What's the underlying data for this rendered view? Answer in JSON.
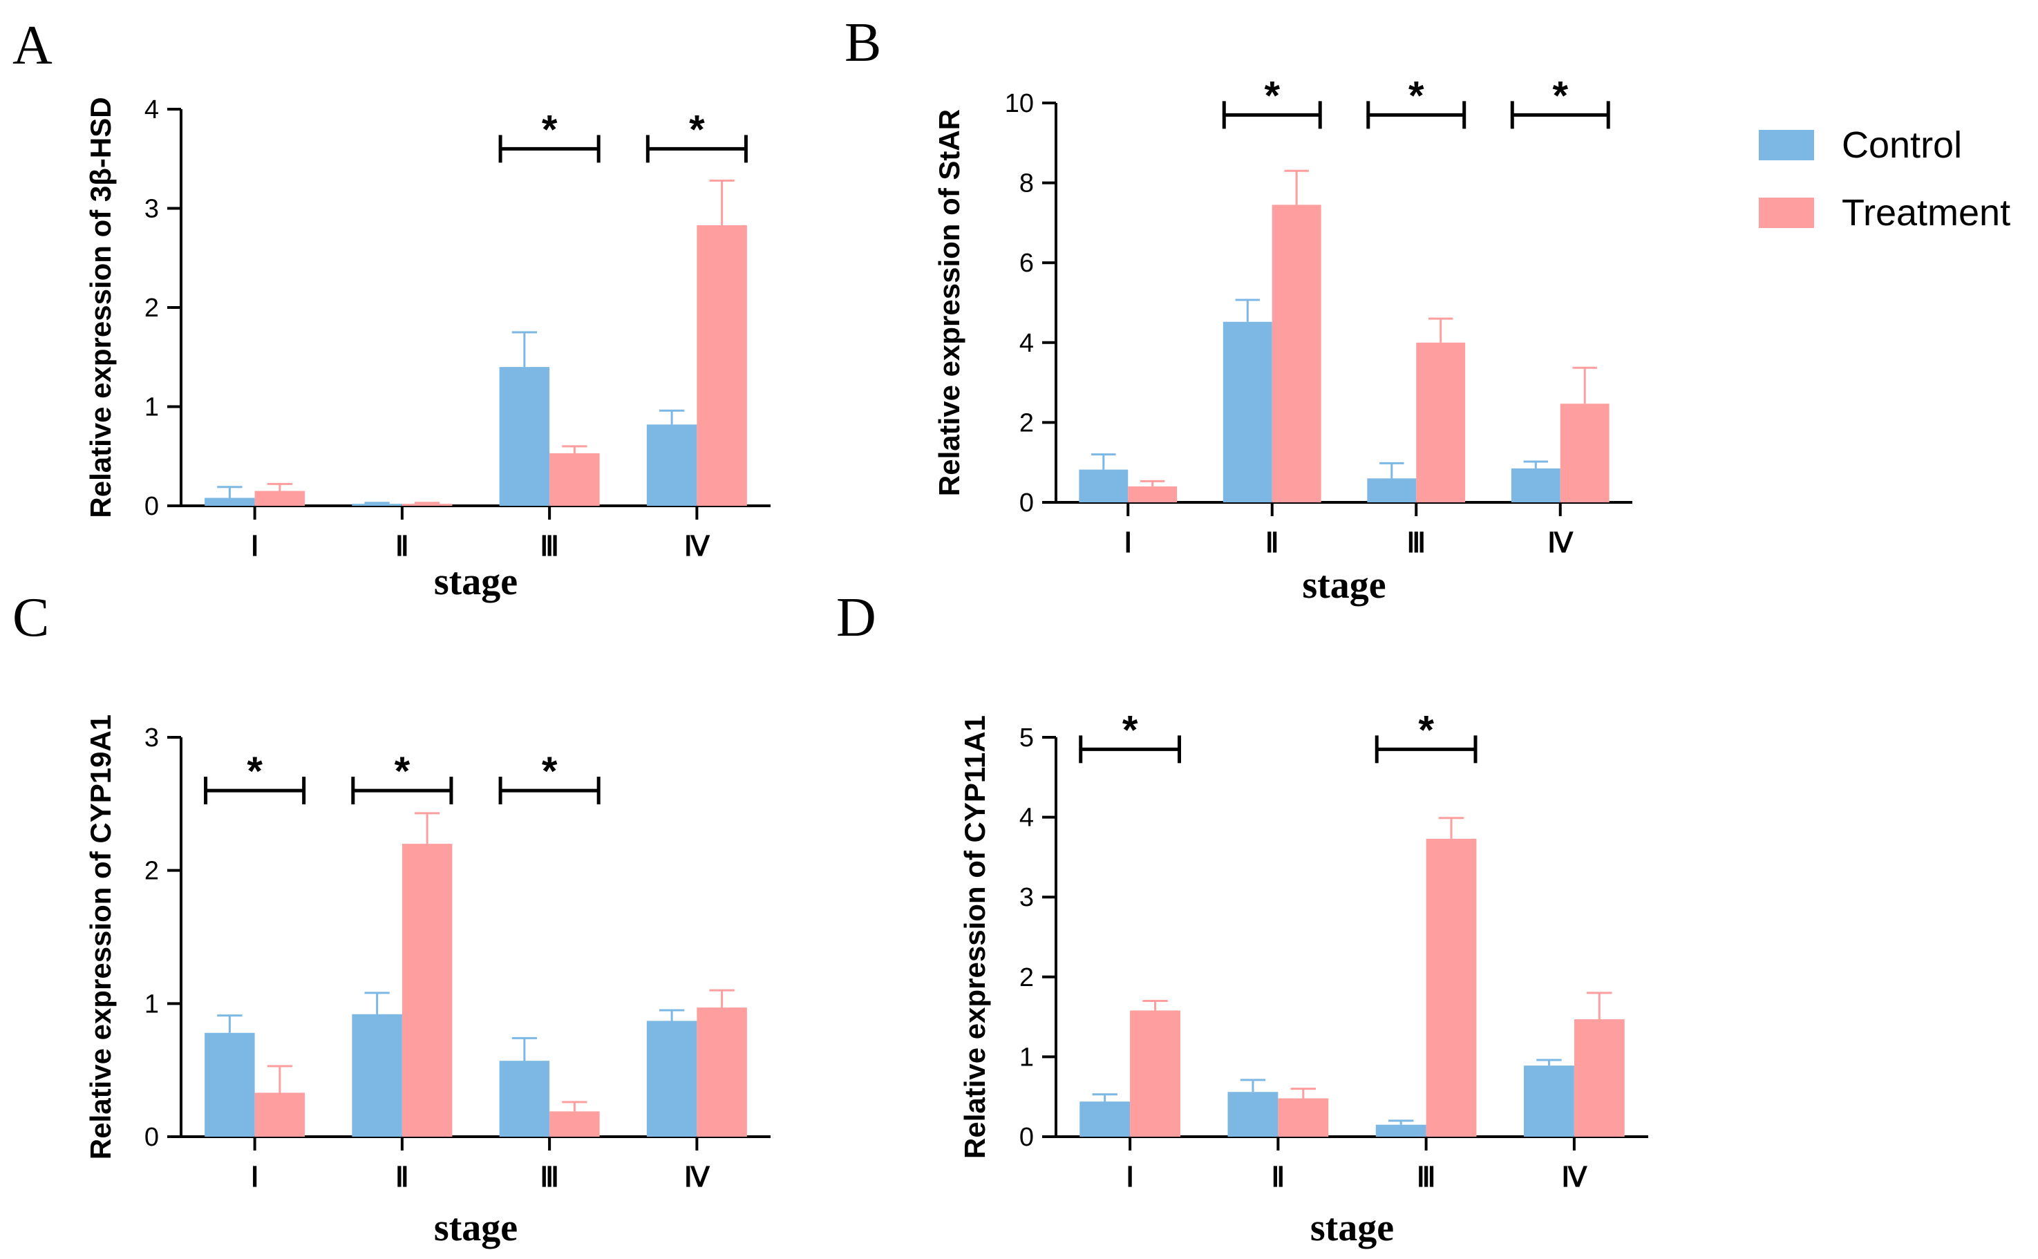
{
  "legend": {
    "items": [
      {
        "label": "Control",
        "color": "#7cb8e3"
      },
      {
        "label": "Treatment",
        "color": "#ff9e9e"
      }
    ]
  },
  "chart_data": [
    {
      "panel": "A",
      "type": "bar",
      "ylabel": "Relative expression of 3β-HSD",
      "xlabel": "stage",
      "categories": [
        "Ⅰ",
        "Ⅱ",
        "Ⅲ",
        "Ⅳ"
      ],
      "ylim": [
        0,
        4
      ],
      "yticks": [
        0,
        1,
        2,
        3,
        4
      ],
      "series": [
        {
          "name": "Control",
          "values": [
            0.08,
            0.02,
            1.4,
            0.82
          ],
          "errors": [
            0.11,
            0.01,
            0.35,
            0.14
          ]
        },
        {
          "name": "Treatment",
          "values": [
            0.15,
            0.02,
            0.53,
            2.83
          ],
          "errors": [
            0.07,
            0.01,
            0.07,
            0.45
          ]
        }
      ],
      "significance": [
        {
          "category": 2,
          "label": "*",
          "level": 3.6
        },
        {
          "category": 3,
          "label": "*",
          "level": 3.6
        }
      ]
    },
    {
      "panel": "B",
      "type": "bar",
      "ylabel": "Relative expression of StAR",
      "xlabel": "stage",
      "categories": [
        "Ⅰ",
        "Ⅱ",
        "Ⅲ",
        "Ⅳ"
      ],
      "ylim": [
        0,
        10
      ],
      "yticks": [
        0,
        2,
        4,
        6,
        8,
        10
      ],
      "series": [
        {
          "name": "Control",
          "values": [
            0.82,
            4.52,
            0.6,
            0.85
          ],
          "errors": [
            0.38,
            0.55,
            0.38,
            0.17
          ]
        },
        {
          "name": "Treatment",
          "values": [
            0.4,
            7.45,
            4.0,
            2.47
          ],
          "errors": [
            0.13,
            0.85,
            0.6,
            0.9
          ]
        }
      ],
      "significance": [
        {
          "category": 1,
          "label": "*",
          "level": 9.7
        },
        {
          "category": 2,
          "label": "*",
          "level": 9.7
        },
        {
          "category": 3,
          "label": "*",
          "level": 9.7
        }
      ]
    },
    {
      "panel": "C",
      "type": "bar",
      "ylabel": "Relative expression of CYP19A1",
      "xlabel": "stage",
      "categories": [
        "Ⅰ",
        "Ⅱ",
        "Ⅲ",
        "Ⅳ"
      ],
      "ylim": [
        0,
        3
      ],
      "yticks": [
        0,
        1,
        2,
        3
      ],
      "series": [
        {
          "name": "Control",
          "values": [
            0.78,
            0.92,
            0.57,
            0.87
          ],
          "errors": [
            0.13,
            0.16,
            0.17,
            0.08
          ]
        },
        {
          "name": "Treatment",
          "values": [
            0.33,
            2.2,
            0.19,
            0.97
          ],
          "errors": [
            0.2,
            0.23,
            0.07,
            0.13
          ]
        }
      ],
      "significance": [
        {
          "category": 0,
          "label": "*",
          "level": 2.6
        },
        {
          "category": 1,
          "label": "*",
          "level": 2.6
        },
        {
          "category": 2,
          "label": "*",
          "level": 2.6
        }
      ]
    },
    {
      "panel": "D",
      "type": "bar",
      "ylabel": "Relative expression of CYP11A1",
      "xlabel": "stage",
      "categories": [
        "Ⅰ",
        "Ⅱ",
        "Ⅲ",
        "Ⅳ"
      ],
      "ylim": [
        0,
        5
      ],
      "yticks": [
        0,
        1,
        2,
        3,
        4,
        5
      ],
      "series": [
        {
          "name": "Control",
          "values": [
            0.44,
            0.56,
            0.15,
            0.89
          ],
          "errors": [
            0.09,
            0.15,
            0.05,
            0.07
          ]
        },
        {
          "name": "Treatment",
          "values": [
            1.58,
            0.48,
            3.73,
            1.47
          ],
          "errors": [
            0.12,
            0.12,
            0.26,
            0.33
          ]
        }
      ],
      "significance": [
        {
          "category": 0,
          "label": "*",
          "level": 4.85
        },
        {
          "category": 2,
          "label": "*",
          "level": 4.85
        }
      ]
    }
  ]
}
